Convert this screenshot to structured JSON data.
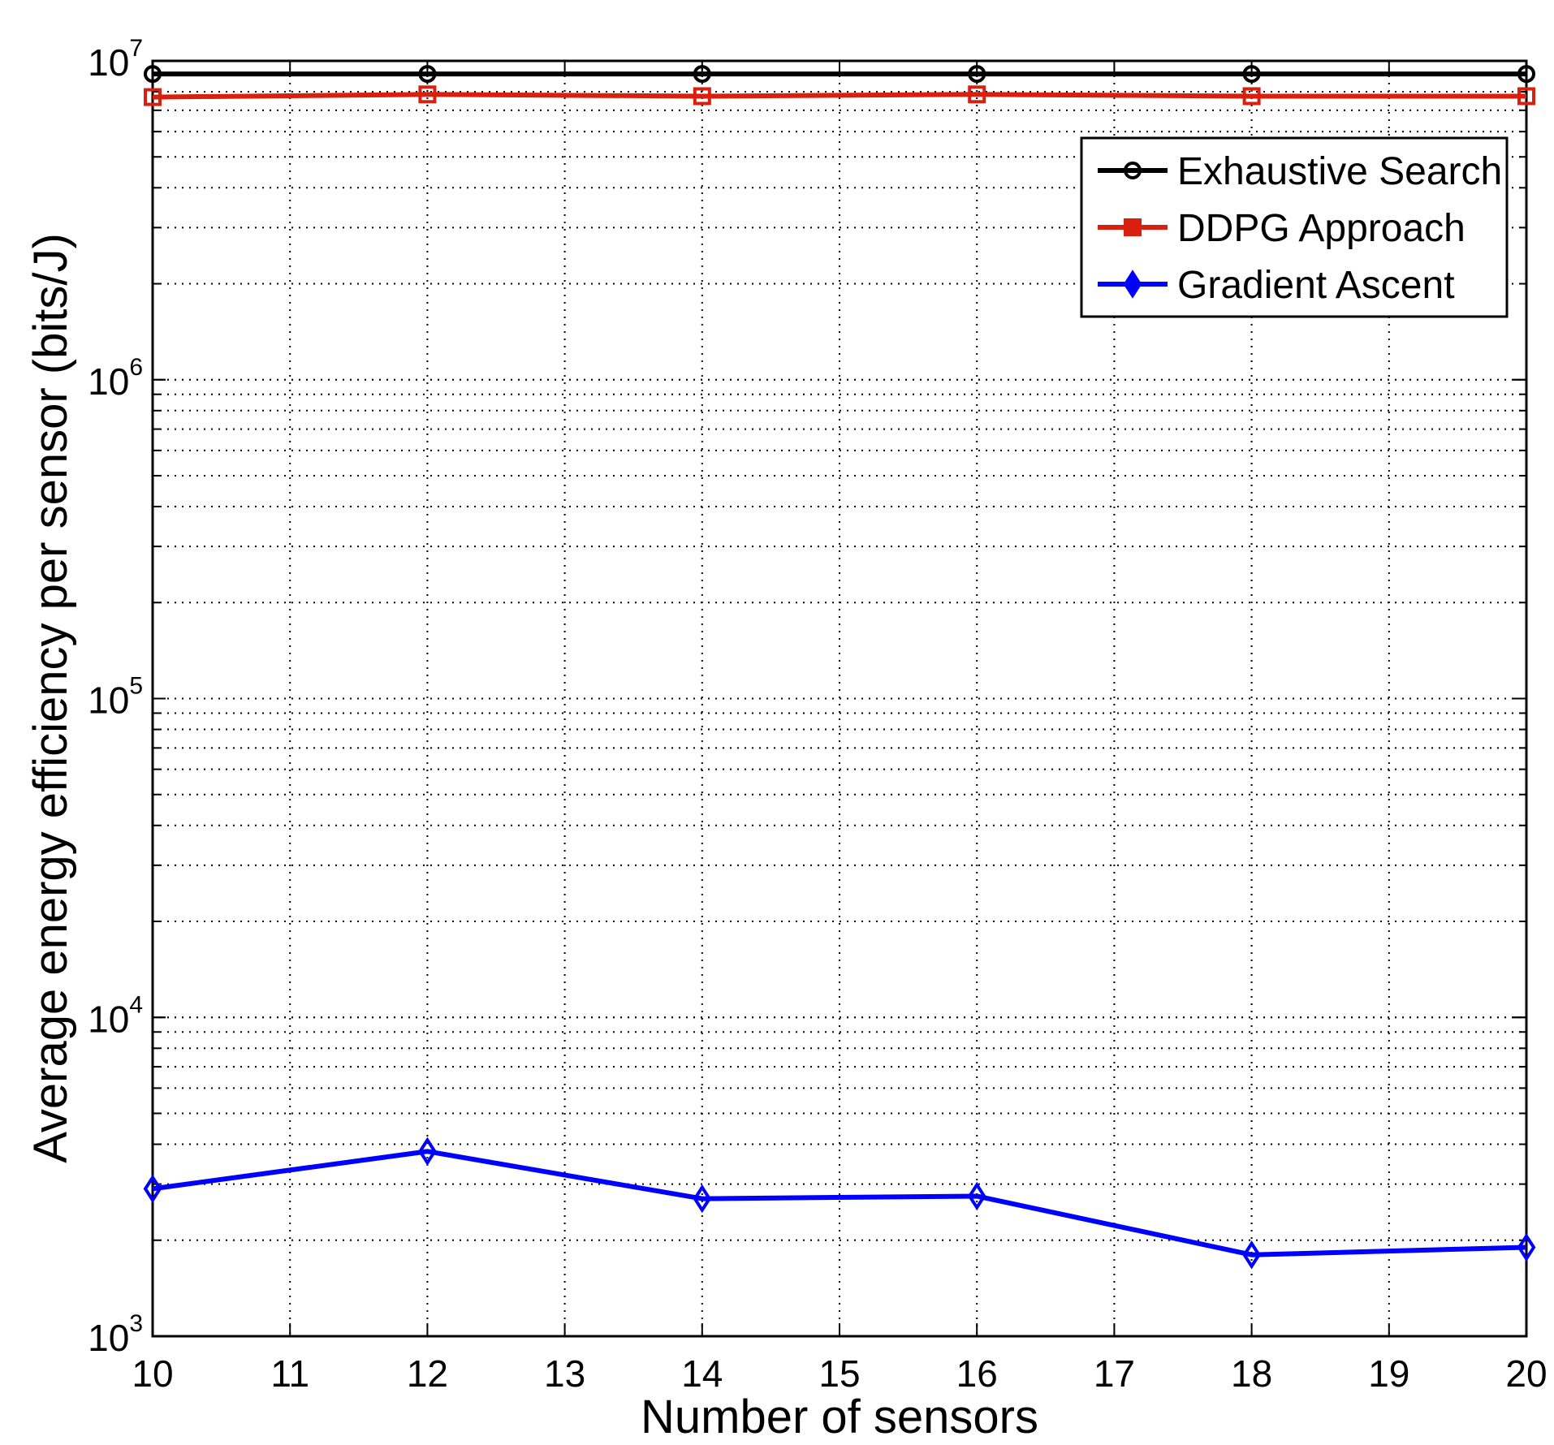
{
  "chart_data": {
    "type": "line",
    "xlabel": "Number of sensors",
    "ylabel": "Average energy efficiency per sensor (bits/J)",
    "x": [
      10,
      12,
      14,
      16,
      18,
      20
    ],
    "xlim": [
      10,
      20
    ],
    "x_ticks": [
      "10",
      "11",
      "12",
      "13",
      "14",
      "15",
      "16",
      "17",
      "18",
      "19",
      "20"
    ],
    "y_scale": "log",
    "ylim": [
      1000,
      10000000
    ],
    "y_ticks": [
      {
        "base": "10",
        "exp": "3"
      },
      {
        "base": "10",
        "exp": "4"
      },
      {
        "base": "10",
        "exp": "5"
      },
      {
        "base": "10",
        "exp": "6"
      },
      {
        "base": "10",
        "exp": "7"
      }
    ],
    "grid": true,
    "legend_position": "top-right",
    "series": [
      {
        "name": "Exhaustive Search",
        "color": "#000000",
        "marker": "circle",
        "values": [
          9100000,
          9100000,
          9100000,
          9100000,
          9100000,
          9100000
        ]
      },
      {
        "name": "DDPG Approach",
        "color": "#d9200f",
        "marker": "square",
        "values": [
          7700000,
          7850000,
          7750000,
          7850000,
          7750000,
          7750000
        ]
      },
      {
        "name": "Gradient Ascent",
        "color": "#0000ff",
        "marker": "diamond",
        "values": [
          2900,
          3800,
          2700,
          2750,
          1800,
          1900
        ]
      }
    ]
  }
}
